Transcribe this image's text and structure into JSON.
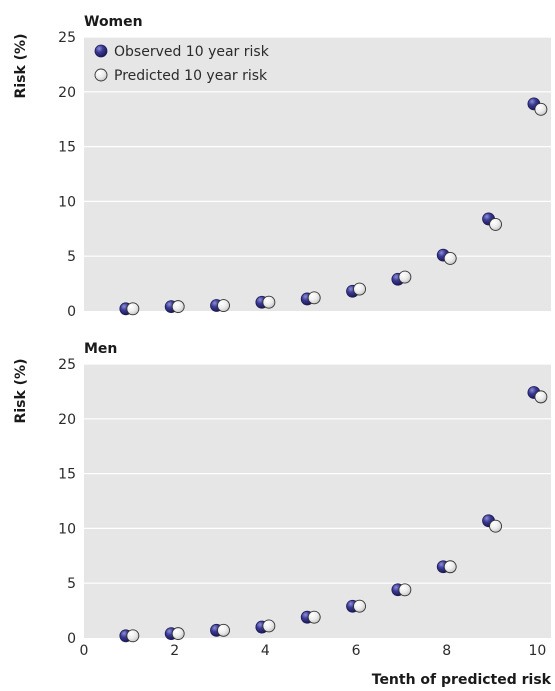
{
  "chart_data": [
    {
      "type": "scatter",
      "title": "Women",
      "ylabel": "Risk (%)",
      "xlabel": "",
      "ylim": [
        0,
        25
      ],
      "yticks": [
        0,
        5,
        10,
        15,
        20,
        25
      ],
      "xlim": [
        0,
        10.3
      ],
      "xticks": [],
      "grid": true,
      "legend_position": "top-left",
      "series": [
        {
          "name": "Observed 10 year risk",
          "color": "#2e2d7a",
          "marker": "filled",
          "x": [
            1,
            2,
            3,
            4,
            5,
            6,
            7,
            8,
            9,
            10
          ],
          "y": [
            0.2,
            0.4,
            0.5,
            0.8,
            1.1,
            1.8,
            2.9,
            5.1,
            8.4,
            18.9
          ]
        },
        {
          "name": "Predicted 10 year risk",
          "color": "#e8e8e8",
          "marker": "open",
          "x": [
            1,
            2,
            3,
            4,
            5,
            6,
            7,
            8,
            9,
            10
          ],
          "y": [
            0.2,
            0.4,
            0.5,
            0.8,
            1.2,
            2.0,
            3.1,
            4.8,
            7.9,
            18.4
          ]
        }
      ]
    },
    {
      "type": "scatter",
      "title": "Men",
      "ylabel": "Risk (%)",
      "xlabel": "Tenth of predicted risk",
      "ylim": [
        0,
        25
      ],
      "yticks": [
        0,
        5,
        10,
        15,
        20,
        25
      ],
      "xlim": [
        0,
        10.3
      ],
      "xticks": [
        0,
        2,
        4,
        6,
        8,
        10
      ],
      "grid": true,
      "series": [
        {
          "name": "Observed 10 year risk",
          "color": "#2e2d7a",
          "marker": "filled",
          "x": [
            1,
            2,
            3,
            4,
            5,
            6,
            7,
            8,
            9,
            10
          ],
          "y": [
            0.2,
            0.4,
            0.7,
            1.0,
            1.9,
            2.9,
            4.4,
            6.5,
            10.7,
            22.4
          ]
        },
        {
          "name": "Predicted 10 year risk",
          "color": "#e8e8e8",
          "marker": "open",
          "x": [
            1,
            2,
            3,
            4,
            5,
            6,
            7,
            8,
            9,
            10
          ],
          "y": [
            0.2,
            0.4,
            0.7,
            1.1,
            1.9,
            2.9,
            4.4,
            6.5,
            10.2,
            22.0
          ]
        }
      ]
    }
  ],
  "legend": {
    "observed_label": "Observed 10 year risk",
    "predicted_label": "Predicted 10 year risk"
  }
}
